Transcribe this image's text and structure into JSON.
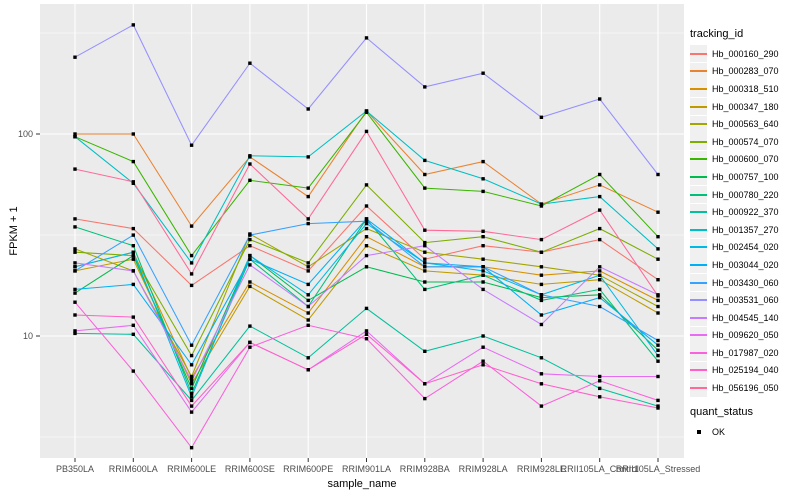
{
  "figure": {
    "ylabel": "FPKM + 1",
    "xlabel": "sample_name"
  },
  "legend": {
    "color_title": "tracking_id",
    "shape_title": "quant_status",
    "shape_items": [
      {
        "label": "OK",
        "marker": "black-square"
      }
    ]
  },
  "chart_data": {
    "type": "line",
    "title": "",
    "xlabel": "sample_name",
    "ylabel": "FPKM + 1",
    "y_scale": "log10",
    "ylim": [
      2.4,
      450
    ],
    "y_tick_labels": [
      "100",
      "10"
    ],
    "y_tick_values": [
      100,
      10
    ],
    "y_minor_gridlines": [
      3.162,
      31.62,
      316.2
    ],
    "grid": "on",
    "legend_position": "right",
    "panel_bg": "#EBEBEB",
    "grid_color": "#FFFFFF",
    "point_marker": {
      "shape": "square",
      "color": "#000000",
      "meaning": "OK"
    },
    "categories": [
      "PB350LA",
      "RRIM600LA",
      "RRIM600LE",
      "RRIM600SE",
      "RRIM600PE",
      "RRIM901LA",
      "RRIM928BA",
      "RRIM928LA",
      "RRIM928LE",
      "RRII105LA_Control",
      "RRII105LA_Stressed"
    ],
    "series": [
      {
        "tracking_id": "Hb_000160_290",
        "color": "#F8766D",
        "values": [
          38,
          34,
          17.8,
          28,
          21,
          44,
          24,
          28,
          26,
          30,
          19
        ]
      },
      {
        "tracking_id": "Hb_000283_070",
        "color": "#EA8331",
        "values": [
          100,
          100,
          35,
          77,
          49,
          130,
          63,
          73,
          45,
          56,
          41
        ]
      },
      {
        "tracking_id": "Hb_000318_510",
        "color": "#D89000",
        "values": [
          22,
          26,
          6.2,
          18.5,
          13,
          31,
          22,
          22,
          20,
          21,
          15
        ]
      },
      {
        "tracking_id": "Hb_000347_180",
        "color": "#C09B00",
        "values": [
          21,
          24,
          5.8,
          17.6,
          12,
          28,
          21,
          20,
          18,
          19,
          13
        ]
      },
      {
        "tracking_id": "Hb_000563_640",
        "color": "#A3A500",
        "values": [
          27,
          21,
          6.3,
          32,
          22,
          34,
          26,
          24,
          22,
          20,
          14
        ]
      },
      {
        "tracking_id": "Hb_000574_070",
        "color": "#7CAE00",
        "values": [
          26,
          25,
          8,
          30,
          23,
          56,
          29,
          31,
          26,
          34,
          24
        ]
      },
      {
        "tracking_id": "Hb_000600_070",
        "color": "#39B600",
        "values": [
          97,
          73,
          25,
          59,
          54,
          128,
          54,
          52,
          44,
          63,
          31
        ]
      },
      {
        "tracking_id": "Hb_000757_100",
        "color": "#00BB4E",
        "values": [
          16.3,
          25,
          5.5,
          25,
          15,
          22,
          18.5,
          18.5,
          15.5,
          16,
          8.5
        ]
      },
      {
        "tracking_id": "Hb_000780_220",
        "color": "#00C079",
        "values": [
          34.7,
          28,
          5.2,
          24,
          14,
          38,
          17,
          20,
          15,
          17,
          7.5
        ]
      },
      {
        "tracking_id": "Hb_000922_370",
        "color": "#00C19C",
        "values": [
          10.3,
          10.2,
          4.8,
          11.2,
          7.8,
          13.7,
          8.4,
          10,
          7.8,
          5.5,
          4.5
        ]
      },
      {
        "tracking_id": "Hb_001357_270",
        "color": "#00BFC4",
        "values": [
          97,
          57,
          23,
          78,
          77,
          130,
          74,
          60,
          45,
          49,
          27
        ]
      },
      {
        "tracking_id": "Hb_002454_020",
        "color": "#00BAE5",
        "values": [
          22,
          26,
          5.0,
          25,
          16,
          36,
          23,
          21,
          16,
          20,
          8
        ]
      },
      {
        "tracking_id": "Hb_003044_020",
        "color": "#00B0F6",
        "values": [
          17,
          18,
          7.2,
          24,
          18,
          38,
          23,
          22,
          12.7,
          15.5,
          9
        ]
      },
      {
        "tracking_id": "Hb_003430_060",
        "color": "#35A2FF",
        "values": [
          21,
          31.6,
          9.0,
          31.6,
          36,
          37,
          22,
          22,
          16,
          14,
          9.5
        ]
      },
      {
        "tracking_id": "Hb_003531_060",
        "color": "#9590FF",
        "values": [
          240,
          347,
          88,
          224,
          133,
          299,
          171,
          200,
          121,
          149,
          63
        ]
      },
      {
        "tracking_id": "Hb_004545_140",
        "color": "#C77CFF",
        "values": [
          23,
          21,
          6.0,
          22.5,
          14,
          25,
          28,
          17,
          11.4,
          22,
          16
        ]
      },
      {
        "tracking_id": "Hb_009620_050",
        "color": "#E76BF3",
        "values": [
          10.6,
          11.3,
          4.2,
          9.3,
          6.8,
          10.6,
          5.8,
          8.8,
          6.5,
          6.3,
          6.3
        ]
      },
      {
        "tracking_id": "Hb_017987_020",
        "color": "#FA62DB",
        "values": [
          14.7,
          6.7,
          2.8,
          8.8,
          11.3,
          9.7,
          4.9,
          7.5,
          4.5,
          6.0,
          4.8
        ]
      },
      {
        "tracking_id": "Hb_025194_040",
        "color": "#FF61C9",
        "values": [
          12.7,
          12.4,
          4.5,
          9.3,
          6.8,
          10.2,
          5.8,
          7.2,
          5.8,
          5.0,
          4.4
        ]
      },
      {
        "tracking_id": "Hb_056196_050",
        "color": "#FF6A98",
        "values": [
          67,
          58,
          20.3,
          71,
          38,
          103,
          33.4,
          33,
          30,
          42,
          15.8
        ]
      }
    ]
  }
}
